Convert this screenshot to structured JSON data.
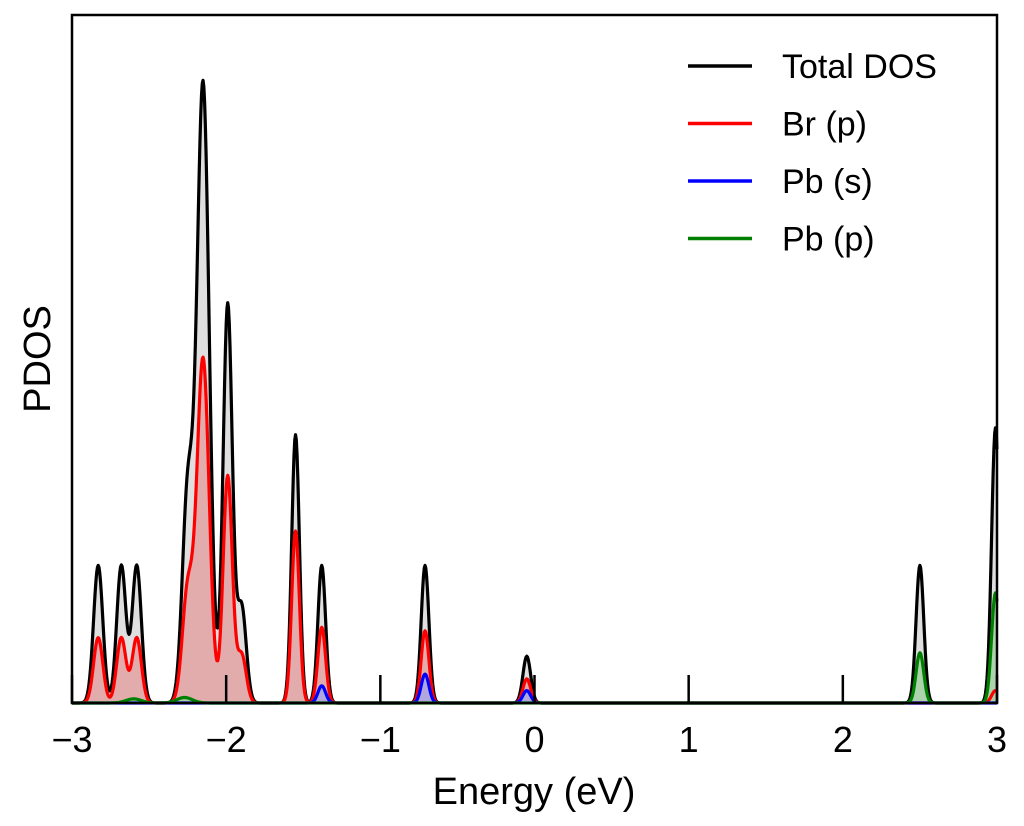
{
  "chart_data": {
    "type": "area",
    "xlabel": "Energy (eV)",
    "ylabel": "PDOS",
    "xlim": [
      -3,
      3
    ],
    "ylim": [
      0,
      1.0
    ],
    "xticks": [
      -3,
      -2,
      -1,
      0,
      1,
      2,
      3
    ],
    "xtick_labels": [
      "−3",
      "−2",
      "−1",
      "0",
      "1",
      "2",
      "3"
    ],
    "yticks_shown": false,
    "legend_position": "top-right",
    "grid": false,
    "series": [
      {
        "name": "Total DOS",
        "color": "#000000",
        "fill": "#d9d9d9",
        "peaks": [
          {
            "center": -2.83,
            "height": 0.2,
            "width": 0.03
          },
          {
            "center": -2.68,
            "height": 0.2,
            "width": 0.03
          },
          {
            "center": -2.58,
            "height": 0.2,
            "width": 0.03
          },
          {
            "center": -2.25,
            "height": 0.3,
            "width": 0.035
          },
          {
            "center": -2.15,
            "height": 0.9,
            "width": 0.04
          },
          {
            "center": -1.99,
            "height": 0.58,
            "width": 0.03
          },
          {
            "center": -1.9,
            "height": 0.14,
            "width": 0.03
          },
          {
            "center": -1.55,
            "height": 0.39,
            "width": 0.025
          },
          {
            "center": -1.38,
            "height": 0.2,
            "width": 0.025
          },
          {
            "center": -0.71,
            "height": 0.2,
            "width": 0.025
          },
          {
            "center": -0.05,
            "height": 0.068,
            "width": 0.025
          },
          {
            "center": 2.5,
            "height": 0.2,
            "width": 0.025
          },
          {
            "center": 2.99,
            "height": 0.4,
            "width": 0.025
          }
        ]
      },
      {
        "name": "Br (p)",
        "color": "#ff0000",
        "fill": "#e3a3a3",
        "peaks": [
          {
            "center": -2.83,
            "height": 0.095,
            "width": 0.03
          },
          {
            "center": -2.68,
            "height": 0.095,
            "width": 0.03
          },
          {
            "center": -2.58,
            "height": 0.095,
            "width": 0.03
          },
          {
            "center": -2.25,
            "height": 0.16,
            "width": 0.035
          },
          {
            "center": -2.15,
            "height": 0.5,
            "width": 0.04
          },
          {
            "center": -1.99,
            "height": 0.33,
            "width": 0.03
          },
          {
            "center": -1.9,
            "height": 0.07,
            "width": 0.03
          },
          {
            "center": -1.55,
            "height": 0.25,
            "width": 0.025
          },
          {
            "center": -1.38,
            "height": 0.11,
            "width": 0.025
          },
          {
            "center": -0.71,
            "height": 0.105,
            "width": 0.025
          },
          {
            "center": -0.05,
            "height": 0.035,
            "width": 0.025
          },
          {
            "center": 2.99,
            "height": 0.018,
            "width": 0.025
          }
        ]
      },
      {
        "name": "Pb (s)",
        "color": "#0000ff",
        "fill": "#a6a6e6",
        "peaks": [
          {
            "center": -1.38,
            "height": 0.025,
            "width": 0.025
          },
          {
            "center": -0.71,
            "height": 0.042,
            "width": 0.025
          },
          {
            "center": -0.05,
            "height": 0.018,
            "width": 0.025
          }
        ]
      },
      {
        "name": "Pb (p)",
        "color": "#008000",
        "fill": "#a3d1a3",
        "peaks": [
          {
            "center": -2.6,
            "height": 0.006,
            "width": 0.05
          },
          {
            "center": -2.27,
            "height": 0.008,
            "width": 0.05
          },
          {
            "center": 2.5,
            "height": 0.073,
            "width": 0.025
          },
          {
            "center": 2.99,
            "height": 0.16,
            "width": 0.025
          }
        ]
      }
    ]
  }
}
